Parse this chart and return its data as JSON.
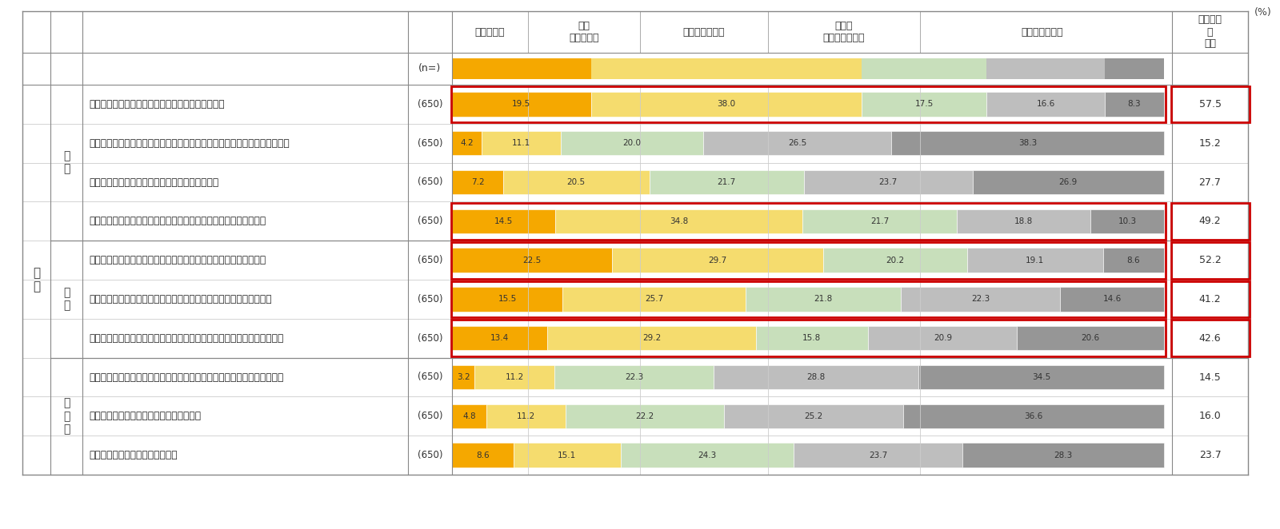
{
  "categories": [
    "旅行者の増加によって、生活圈の雰囲気が変わった",
    "看板、飲食店のメニューなどで外国語表記を見ることが増え、落ち着かない",
    "安価なホテルや特定の業態の店舗が急激に増えた",
    "旅行者の増加に合わせて物価や飲食店の価格などが急激に上昇した",
    "マナーが悪い（割り込み、路上飲酒、ポイ捨てなど）旅行者がいる",
    "立ち入り禁止場所へ侵入する人がいる、無断で写真撮影する人がいる",
    "旅行者で混雑して、普段使うバスや電車に乗車できない、お店に入れない",
    "食べ歩きで店内・施設内に入り、展示商品やほかの人の洋服などが汚れる",
    "建造物・文化財などの破損・落書きがある",
    "自然環境が悪化していると感じる"
  ],
  "n_labels": [
    "(650)",
    "(650)",
    "(650)",
    "(650)",
    "(650)",
    "(650)",
    "(650)",
    "(650)",
    "(650)",
    "(650)"
  ],
  "data": [
    [
      19.5,
      38.0,
      17.5,
      16.6,
      8.3
    ],
    [
      4.2,
      11.1,
      20.0,
      26.5,
      38.3
    ],
    [
      7.2,
      20.5,
      21.7,
      23.7,
      26.9
    ],
    [
      14.5,
      34.8,
      21.7,
      18.8,
      10.3
    ],
    [
      22.5,
      29.7,
      20.2,
      19.1,
      8.6
    ],
    [
      15.5,
      25.7,
      21.8,
      22.3,
      14.6
    ],
    [
      13.4,
      29.2,
      15.8,
      20.9,
      20.6
    ],
    [
      3.2,
      11.2,
      22.3,
      28.8,
      34.5
    ],
    [
      4.8,
      11.2,
      22.2,
      25.2,
      36.6
    ],
    [
      8.6,
      15.1,
      24.3,
      23.7,
      28.3
    ]
  ],
  "sum_values": [
    57.5,
    15.2,
    27.7,
    49.2,
    52.2,
    41.2,
    42.6,
    14.5,
    16.0,
    23.7
  ],
  "highlighted_rows": [
    0,
    3,
    4,
    5,
    6
  ],
  "bar_colors": [
    "#F5A800",
    "#F5DC6E",
    "#C8DFBB",
    "#BEBEBE",
    "#969696"
  ],
  "header_sample_bar_colors": [
    "#F5A800",
    "#F5DC6E",
    "#C8DFBB",
    "#BEBEBE",
    "#969696"
  ],
  "header_sample_widths": [
    19.5,
    38.0,
    17.5,
    16.6,
    8.3
  ],
  "groups": [
    {
      "label": "不\n安",
      "rows": [
        0,
        1,
        2,
        3
      ]
    },
    {
      "label": "不\n快",
      "rows": [
        4,
        5,
        6
      ]
    },
    {
      "label": "不\n利\n益",
      "rows": [
        7,
        8,
        9
      ]
    }
  ],
  "parent_label": "全\n体",
  "col_headers": [
    "あてはまる",
    "やや\nあてはまる",
    "どちらでもない",
    "あまり\nあてはまらない",
    "あてはまらない"
  ],
  "sum_col_header": "あてはま\nる\n・計",
  "percent_label": "(%)",
  "bg_color": "#FFFFFF"
}
